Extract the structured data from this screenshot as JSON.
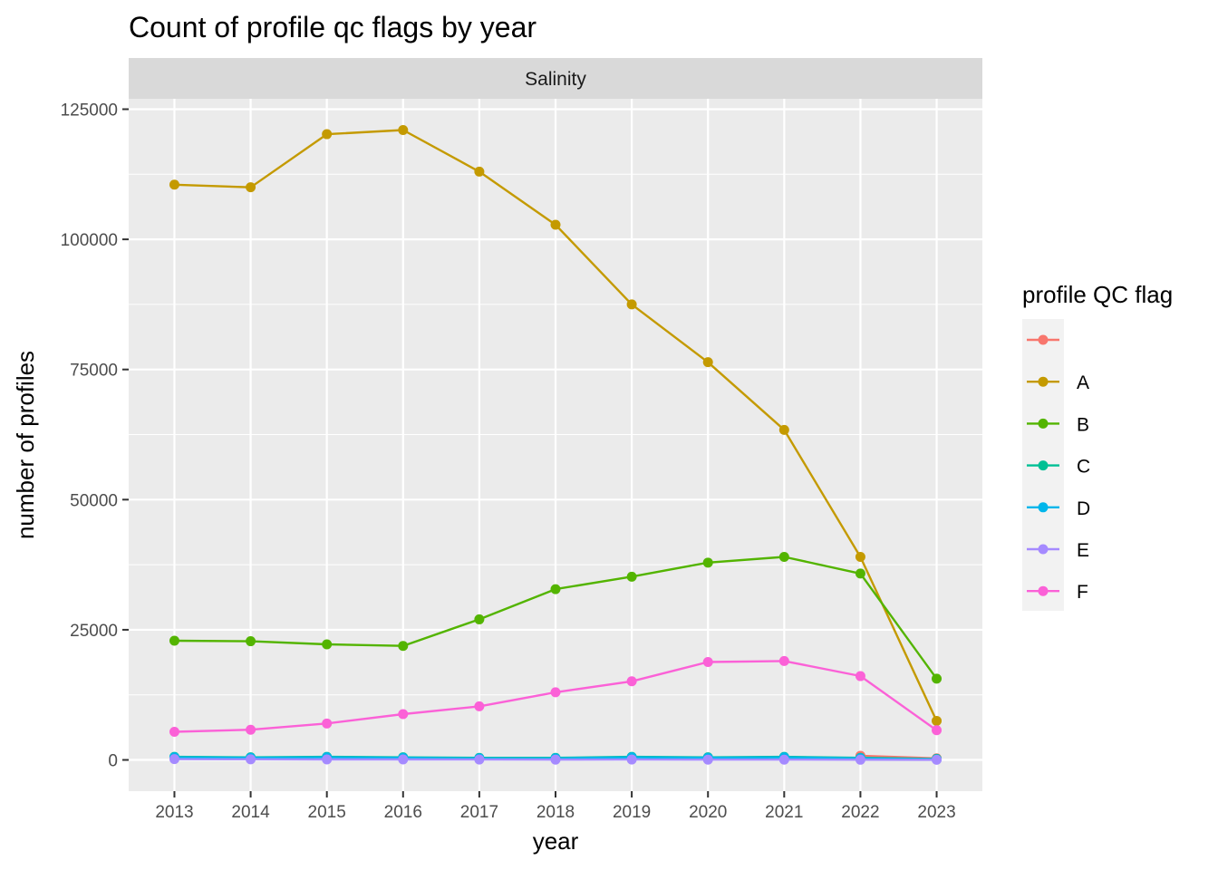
{
  "chart_data": {
    "type": "line",
    "title": "Count of profile qc flags by year",
    "facet": "Salinity",
    "xlabel": "year",
    "ylabel": "number of profiles",
    "x": [
      2013,
      2014,
      2015,
      2016,
      2017,
      2018,
      2019,
      2020,
      2021,
      2022,
      2023
    ],
    "x_tick_labels": [
      "2013",
      "2014",
      "2015",
      "2016",
      "2017",
      "2018",
      "2019",
      "2020",
      "2021",
      "2022",
      "2023"
    ],
    "y_ticks": [
      0,
      25000,
      50000,
      75000,
      100000,
      125000
    ],
    "y_tick_labels": [
      "0",
      "25000",
      "50000",
      "75000",
      "100000",
      "125000"
    ],
    "xlim": [
      2012.4,
      2023.6
    ],
    "ylim": [
      -6000,
      127000
    ],
    "grid": true,
    "legend": {
      "title": "profile QC flag",
      "position": "right"
    },
    "series": [
      {
        "name": "",
        "color": "#F8766D",
        "values": [
          null,
          null,
          null,
          null,
          null,
          null,
          null,
          null,
          null,
          800,
          300
        ]
      },
      {
        "name": "A",
        "color": "#C49A00",
        "values": [
          110500,
          110000,
          120200,
          121000,
          113000,
          102800,
          87500,
          76400,
          63400,
          39000,
          7500
        ]
      },
      {
        "name": "B",
        "color": "#53B400",
        "values": [
          22900,
          22800,
          22200,
          21900,
          27000,
          32800,
          35200,
          37900,
          39000,
          35800,
          15600
        ]
      },
      {
        "name": "C",
        "color": "#00C094",
        "values": [
          600,
          500,
          600,
          500,
          400,
          400,
          600,
          500,
          600,
          400,
          200
        ]
      },
      {
        "name": "D",
        "color": "#00B6EB",
        "values": [
          500,
          400,
          500,
          400,
          300,
          300,
          500,
          400,
          500,
          300,
          100
        ]
      },
      {
        "name": "E",
        "color": "#A58AFF",
        "values": [
          150,
          120,
          100,
          100,
          80,
          60,
          80,
          60,
          50,
          40,
          20
        ]
      },
      {
        "name": "F",
        "color": "#FB61D7",
        "values": [
          5400,
          5800,
          7000,
          8800,
          10300,
          13000,
          15100,
          18800,
          19000,
          16100,
          5700
        ]
      }
    ]
  }
}
